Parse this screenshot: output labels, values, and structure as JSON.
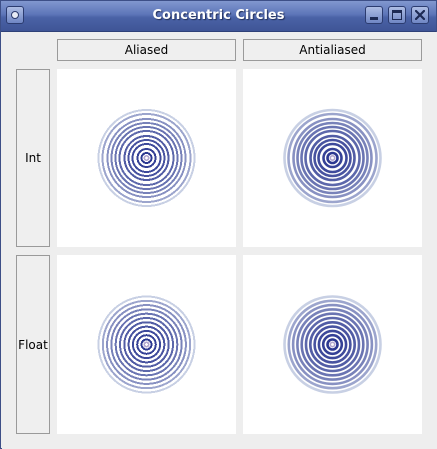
{
  "window": {
    "title": "Concentric Circles"
  },
  "icons": {
    "window_menu": "window-menu-icon",
    "minimize": "minimize-icon",
    "maximize": "maximize-icon",
    "close": "close-icon"
  },
  "columns": [
    {
      "label": "Aliased"
    },
    {
      "label": "Antialiased"
    }
  ],
  "rows": [
    {
      "label": "Int"
    },
    {
      "label": "Float"
    }
  ],
  "colors": {
    "ring_outer": "#c8d0e4",
    "ring_inner": "#2c3891",
    "center": "#b3a7cf",
    "cell_background": "#ffffff",
    "window_background": "#eeeeee",
    "titlebar": "#5d75b8"
  },
  "circles": {
    "ring_count": 11
  }
}
